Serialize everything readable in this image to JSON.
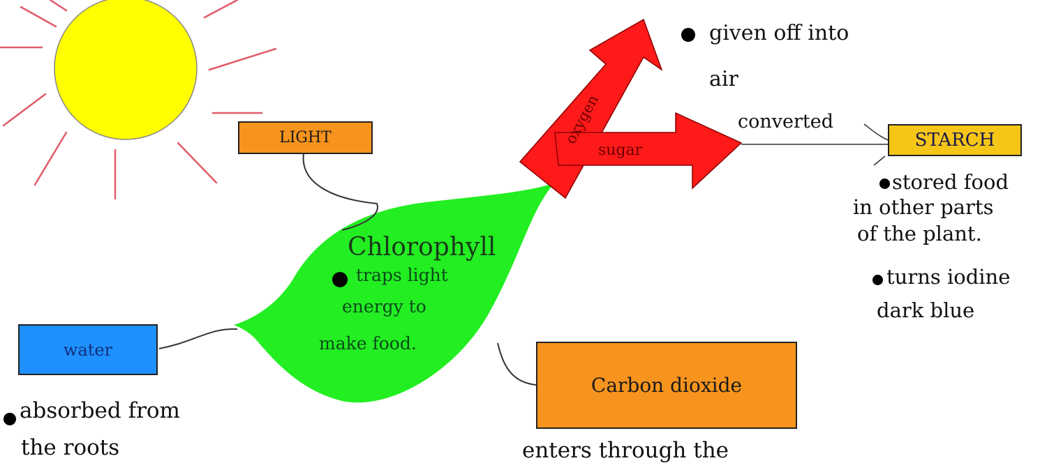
{
  "labels": {
    "light": "LIGHT",
    "water": "water",
    "carbon_dioxide": "Carbon dioxide",
    "starch": "STARCH",
    "chlorophyll": "Chlorophyll",
    "oxygen": "oxygen",
    "sugar": "sugar",
    "converted": "converted"
  },
  "notes": {
    "chlorophyll_1": "traps light",
    "chlorophyll_2": "energy to",
    "chlorophyll_3": "make food.",
    "oxygen_1": "given off into",
    "oxygen_2": "air",
    "starch_1": "stored food",
    "starch_2": "in other parts",
    "starch_3": "of the plant.",
    "starch_4": "turns iodine",
    "starch_5": "dark blue",
    "water_1": "absorbed from",
    "water_2": "the roots",
    "co2_1": "enters through the"
  },
  "colors": {
    "sun": "#ffff00",
    "sun_rays": "#e05a6a",
    "light_box": "#f7941d",
    "water_box": "#1e90ff",
    "co2_box": "#f7941d",
    "starch_box": "#f5c518",
    "leaf": "#22ee22",
    "arrows": "#ff1a1a"
  }
}
